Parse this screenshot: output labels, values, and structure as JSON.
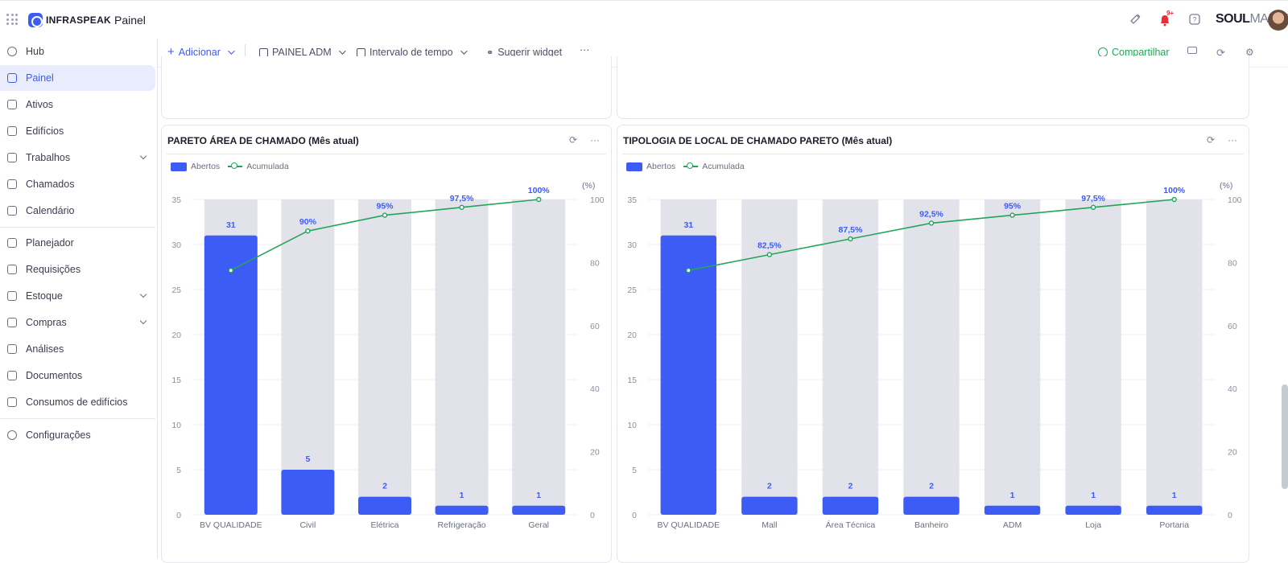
{
  "app": {
    "logo_text": "INFRASPEAK",
    "title": "Painel",
    "brand_main": "SOUL",
    "brand_sub": "MALLS",
    "notif_badge": "9+"
  },
  "sidebar": {
    "items": [
      {
        "label": "Hub",
        "icon": "hub-icon"
      },
      {
        "label": "Painel",
        "icon": "dashboard-icon",
        "active": true
      },
      {
        "label": "Ativos",
        "icon": "assets-icon"
      },
      {
        "label": "Edifícios",
        "icon": "buildings-icon"
      },
      {
        "label": "Trabalhos",
        "icon": "calendar-work-icon",
        "chevron": true
      },
      {
        "label": "Chamados",
        "icon": "tickets-icon"
      },
      {
        "label": "Calendário",
        "icon": "calendar-icon"
      },
      {
        "label": "Planejador",
        "icon": "planner-icon"
      },
      {
        "label": "Requisições",
        "icon": "requests-icon"
      },
      {
        "label": "Estoque",
        "icon": "stock-icon",
        "chevron": true
      },
      {
        "label": "Compras",
        "icon": "cart-icon",
        "chevron": true
      },
      {
        "label": "Análises",
        "icon": "analytics-icon"
      },
      {
        "label": "Documentos",
        "icon": "documents-icon"
      },
      {
        "label": "Consumos de edifícios",
        "icon": "energy-icon"
      },
      {
        "label": "Configurações",
        "icon": "settings-icon"
      }
    ]
  },
  "toolbar": {
    "add": "Adicionar",
    "panel": "PAINEL ADM",
    "interval": "Intervalo de tempo",
    "suggest": "Sugerir widget",
    "more": "···",
    "share": "Compartilhar"
  },
  "colors": {
    "accent": "#3d5bf5",
    "line": "#22a55a",
    "bar_bg": "#e2e3ea"
  },
  "chart_data": [
    {
      "type": "bar",
      "title": "PARETO ÁREA DE CHAMADO (Mês atual)",
      "legend": [
        "Abertos",
        "Acumulada"
      ],
      "categories": [
        "BV QUALIDADE",
        "Civil",
        "Elétrica",
        "Refrigeração",
        "Geral"
      ],
      "series": [
        {
          "name": "Abertos",
          "values": [
            31,
            5,
            2,
            1,
            1
          ]
        },
        {
          "name": "Acumulada",
          "values": [
            77.5,
            90,
            95,
            97.5,
            100
          ],
          "labels": [
            "",
            "90%",
            "95%",
            "97,5%",
            "100%"
          ]
        }
      ],
      "ylim": [
        0,
        35
      ],
      "yticks": [
        0,
        5,
        10,
        15,
        20,
        25,
        30,
        35
      ],
      "y2lim": [
        0,
        100
      ],
      "y2ticks": [
        0,
        20,
        40,
        60,
        80,
        100
      ],
      "y2label": "(%)"
    },
    {
      "type": "bar",
      "title": "TIPOLOGIA DE LOCAL DE CHAMADO PARETO (Mês atual)",
      "legend": [
        "Abertos",
        "Acumulada"
      ],
      "categories": [
        "BV QUALIDADE",
        "Mall",
        "Área Técnica",
        "Banheiro",
        "ADM",
        "Loja",
        "Portaria"
      ],
      "series": [
        {
          "name": "Abertos",
          "values": [
            31,
            2,
            2,
            2,
            1,
            1,
            1
          ]
        },
        {
          "name": "Acumulada",
          "values": [
            77.5,
            82.5,
            87.5,
            92.5,
            95,
            97.5,
            100
          ],
          "labels": [
            "",
            "82,5%",
            "87,5%",
            "92,5%",
            "95%",
            "97,5%",
            "100%"
          ]
        }
      ],
      "ylim": [
        0,
        35
      ],
      "yticks": [
        0,
        5,
        10,
        15,
        20,
        25,
        30,
        35
      ],
      "y2lim": [
        0,
        100
      ],
      "y2ticks": [
        0,
        20,
        40,
        60,
        80,
        100
      ],
      "y2label": "(%)"
    }
  ]
}
